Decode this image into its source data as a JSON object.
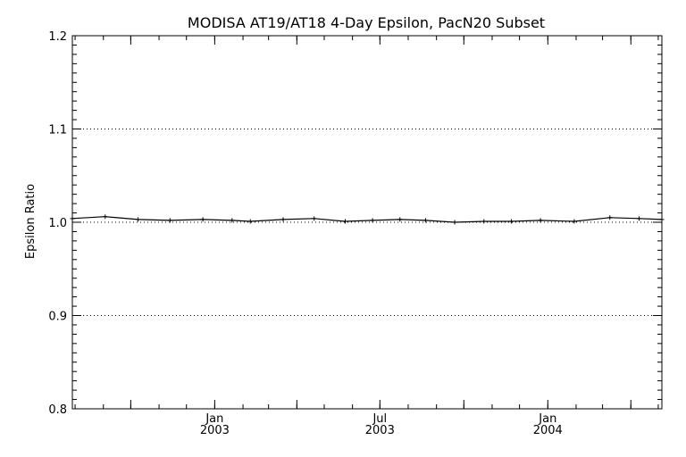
{
  "chart_data": {
    "type": "line",
    "title": "MODISA AT19/AT18 4-Day Epsilon, PacN20 Subset",
    "xlabel": "",
    "ylabel": "Epsilon Ratio",
    "ylim": [
      0.8,
      1.2
    ],
    "yticks": [
      "0.8",
      "0.9",
      "1.0",
      "1.1",
      "1.2"
    ],
    "xlim": [
      "2002-07-29",
      "2004-05-05"
    ],
    "xticks": [
      {
        "date": "2003-01-01",
        "month": "Jan",
        "year": "2003"
      },
      {
        "date": "2003-07-01",
        "month": "Jul",
        "year": "2003"
      },
      {
        "date": "2004-01-01",
        "month": "Jan",
        "year": "2004"
      }
    ],
    "grid_y": [
      0.9,
      1.0,
      1.1
    ],
    "grid_style": "dotted",
    "series": [
      {
        "x": [
          "2002-07-29",
          "2002-09-03",
          "2002-10-09",
          "2002-11-13",
          "2002-12-19",
          "2003-01-20",
          "2003-02-09",
          "2003-03-17",
          "2003-04-20",
          "2003-05-24",
          "2003-06-23",
          "2003-07-23",
          "2003-08-20",
          "2003-09-21",
          "2003-10-23",
          "2003-11-22",
          "2003-12-24",
          "2004-01-30",
          "2004-03-09",
          "2004-04-10",
          "2004-05-05"
        ],
        "y": [
          1.004,
          1.006,
          1.003,
          1.002,
          1.003,
          1.002,
          1.001,
          1.003,
          1.004,
          1.001,
          1.002,
          1.003,
          1.002,
          1.0,
          1.001,
          1.001,
          1.002,
          1.001,
          1.005,
          1.004,
          1.003
        ],
        "marker": "plus",
        "color": "#000000"
      }
    ]
  }
}
